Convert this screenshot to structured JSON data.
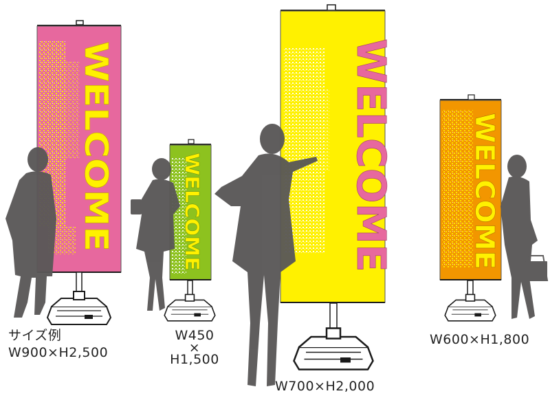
{
  "colors": {
    "pink": "#e7689e",
    "lime": "#8dc21f",
    "yellow": "#fff100",
    "orange": "#f29600",
    "silhouette": "#595757",
    "stand": "#1a1a1a"
  },
  "banners": [
    {
      "text": "WELCOME",
      "color": "#e7689e",
      "text_color": "#fff100"
    },
    {
      "text": "WELCOME",
      "color": "#8dc21f",
      "text_color": "#fff100"
    },
    {
      "text": "WELCOME",
      "color": "#fff100",
      "text_color": "#e7689e"
    },
    {
      "text": "WELCOME",
      "color": "#f29600",
      "text_color": "#fff100"
    }
  ],
  "captions": {
    "c1_line1": "サイズ例",
    "c1_line2": "W900×H2,500",
    "c2_line1": "W450",
    "c2_line2": "×",
    "c2_line3": "H1,500",
    "c3": "W700×H2,000",
    "c4": "W600×H1,800"
  }
}
